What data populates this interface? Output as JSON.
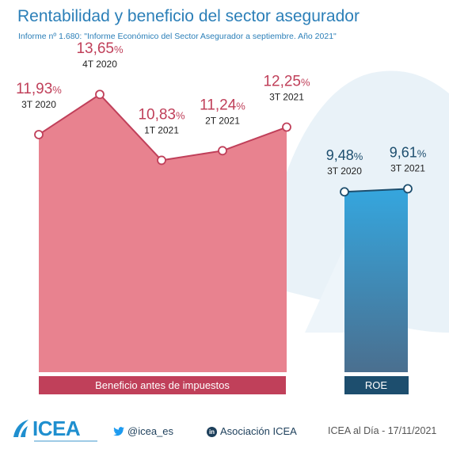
{
  "header": {
    "title": "Rentabilidad y beneficio del sector asegurador",
    "subtitle": "Informe nº 1.680: \"Informe Económico del Sector Asegurador a septiembre. Año 2021\""
  },
  "chart_data": [
    {
      "type": "area",
      "label": "Beneficio antes de impuestos",
      "color": "#e8828f",
      "line_color": "#c0405a",
      "label_bar_color": "#c0405a",
      "unit": "%",
      "points": [
        {
          "period": "3T 2020",
          "value": 11.93,
          "value_text": "11,93"
        },
        {
          "period": "4T 2020",
          "value": 13.65,
          "value_text": "13,65"
        },
        {
          "period": "1T 2021",
          "value": 10.83,
          "value_text": "10,83"
        },
        {
          "period": "2T 2021",
          "value": 11.24,
          "value_text": "11,24"
        },
        {
          "period": "3T 2021",
          "value": 12.25,
          "value_text": "12,25"
        }
      ]
    },
    {
      "type": "area",
      "label": "ROE",
      "color": "#2f9fd8",
      "line_color": "#1d4e6e",
      "label_bar_color": "#1d4e6e",
      "unit": "%",
      "points": [
        {
          "period": "3T 2020",
          "value": 9.48,
          "value_text": "9,48"
        },
        {
          "period": "3T 2021",
          "value": 9.61,
          "value_text": "9,61"
        }
      ]
    }
  ],
  "footer": {
    "logo": "ICEA",
    "twitter": "@icea_es",
    "linkedin_icon": "in",
    "linkedin": "Asociación ICEA",
    "source": "ICEA al Día - 17/11/2021"
  }
}
